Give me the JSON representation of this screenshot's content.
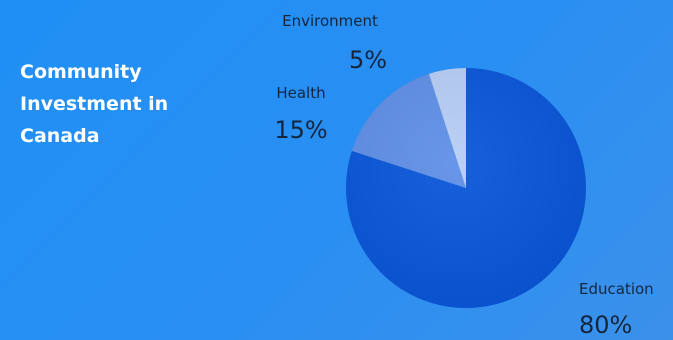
{
  "title_lines": [
    "Community",
    "Investment in",
    "Canada"
  ],
  "colors": {
    "background": "#1f8ff5",
    "text_dark": "#15253d",
    "title_text": "#ffffff"
  },
  "chart_data": {
    "type": "pie",
    "title": "Community Investment in Canada",
    "slices": [
      {
        "label": "Education",
        "value": 80,
        "display": "80%",
        "color": "#0a56d9"
      },
      {
        "label": "Health",
        "value": 15,
        "display": "15%",
        "color": "#5f8fe6"
      },
      {
        "label": "Environment",
        "value": 5,
        "display": "5%",
        "color": "#b7cdf5"
      }
    ]
  }
}
